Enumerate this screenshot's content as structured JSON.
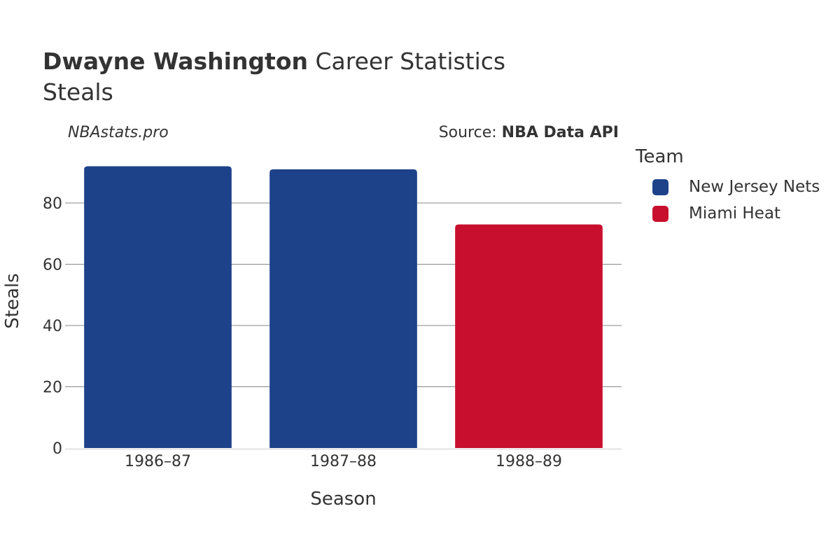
{
  "header": {
    "title_bold": "Dwayne Washington",
    "title_rest": " Career Statistics",
    "subtitle": "Steals",
    "watermark": "NBAstats.pro",
    "source_prefix": "Source: ",
    "source_name": "NBA Data API"
  },
  "legend": {
    "title": "Team",
    "items": [
      {
        "label": "New Jersey Nets",
        "color": "#1d428a"
      },
      {
        "label": "Miami Heat",
        "color": "#c8102e"
      }
    ]
  },
  "chart_data": {
    "type": "bar",
    "categories": [
      "1986–87",
      "1987–88",
      "1988–89"
    ],
    "series": [
      {
        "name": "New Jersey Nets",
        "color": "#1d428a",
        "values": [
          92,
          91,
          null
        ]
      },
      {
        "name": "Miami Heat",
        "color": "#c8102e",
        "values": [
          null,
          null,
          73
        ]
      }
    ],
    "xlabel": "Season",
    "ylabel": "Steals",
    "ylim": [
      0,
      96
    ],
    "yticks": [
      0,
      20,
      40,
      60,
      80
    ],
    "grid": true,
    "legend_position": "right"
  }
}
